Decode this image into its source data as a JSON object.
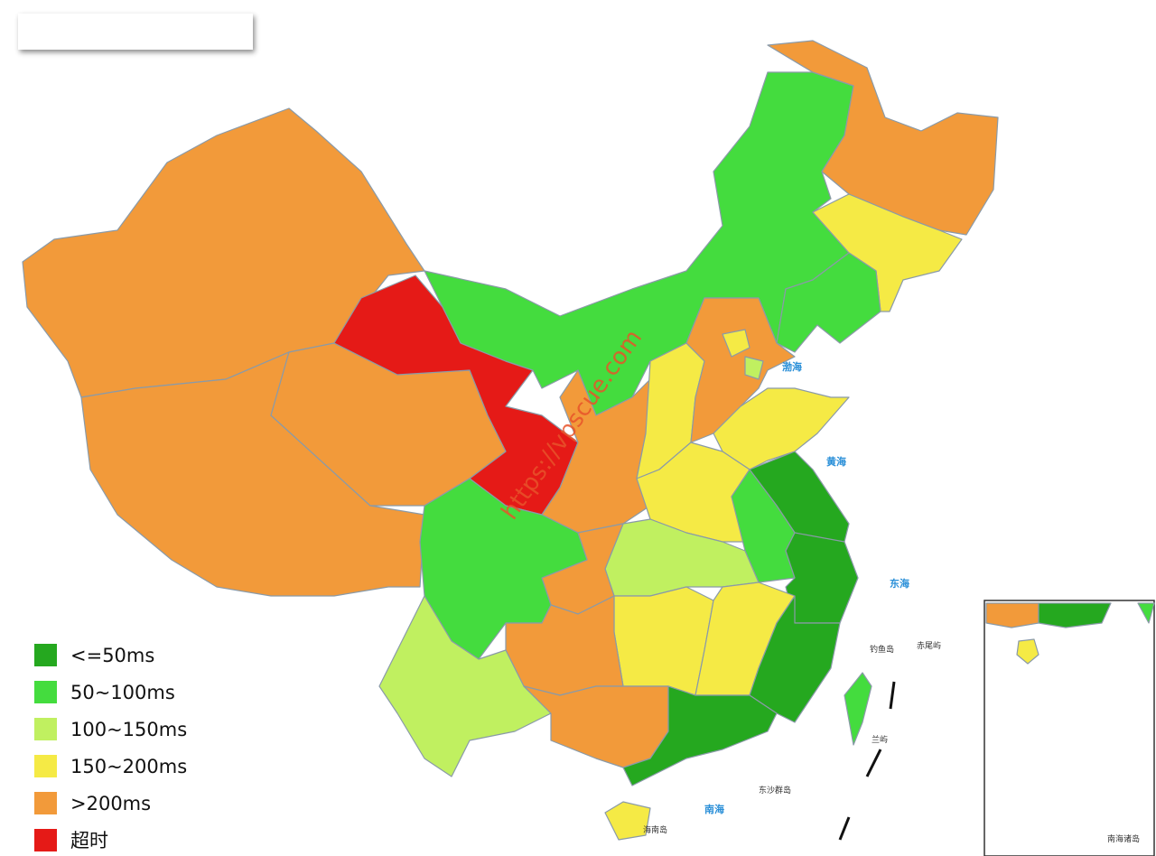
{
  "legend": [
    {
      "label": "<=50ms",
      "color": "#25a81f"
    },
    {
      "label": "50~100ms",
      "color": "#44dc3e"
    },
    {
      "label": "100~150ms",
      "color": "#c0f060"
    },
    {
      "label": "150~200ms",
      "color": "#f5ea45"
    },
    {
      "label": ">200ms",
      "color": "#f29a3a"
    },
    {
      "label": "超时",
      "color": "#e51a17"
    }
  ],
  "watermark": "https://vpscue.com",
  "map_labels": {
    "bohai": "渤海",
    "huanghai": "黄海",
    "donghai": "东海",
    "nanhai": "南海",
    "diaoyudao": "钓鱼岛",
    "chiweiyu": "赤尾屿",
    "dongsha": "东沙群岛",
    "hainandao": "海南岛",
    "lanyu": "兰屿",
    "inset_title": "南海诸岛"
  }
}
